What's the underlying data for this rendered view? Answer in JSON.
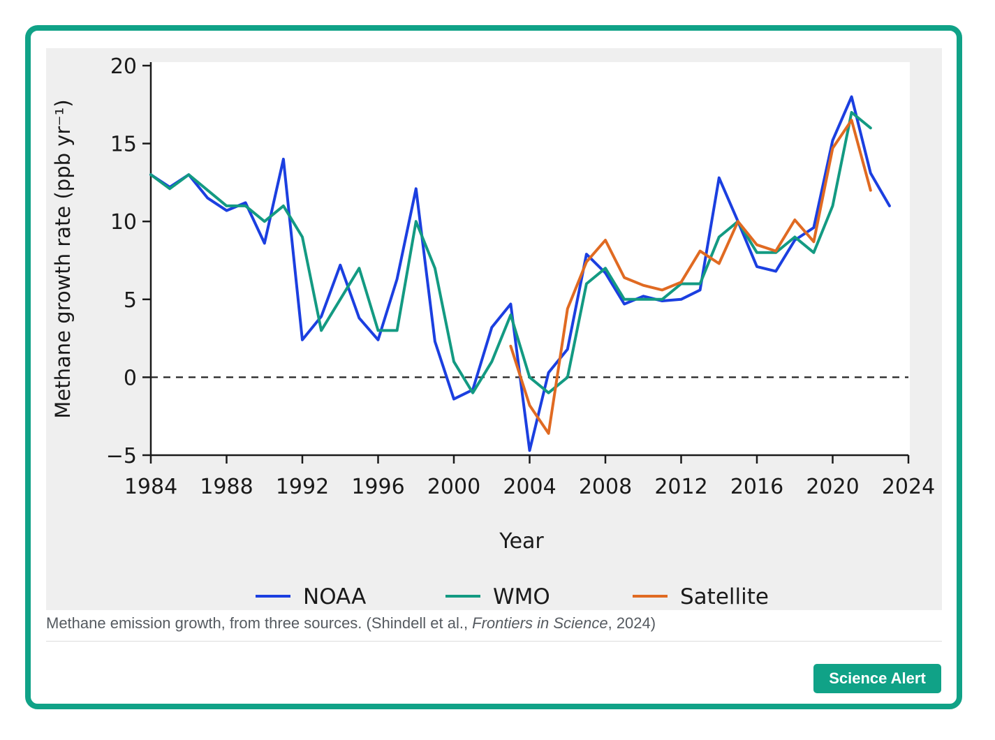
{
  "caption": {
    "prefix": "Methane emission growth, from three sources. (Shindell et al., ",
    "journal": "Frontiers in Science",
    "suffix": ", 2024)"
  },
  "badge": {
    "label": "Science Alert"
  },
  "colors": {
    "NOAA": "#1b3fe0",
    "WMO": "#139a82",
    "Satellite": "#e06a22",
    "border": "#10a287"
  },
  "chart_data": {
    "type": "line",
    "title": "",
    "xlabel": "Year",
    "ylabel": "Methane growth rate (ppb yr⁻¹)",
    "xlim": [
      1984,
      2024
    ],
    "ylim": [
      -5,
      20
    ],
    "xticks": [
      1984,
      1988,
      1992,
      1996,
      2000,
      2004,
      2008,
      2012,
      2016,
      2020,
      2024
    ],
    "yticks": [
      -5,
      0,
      5,
      10,
      15,
      20
    ],
    "yticklabels": [
      "−5",
      "0",
      "5",
      "10",
      "15",
      "20"
    ],
    "reference_line": {
      "y": 0,
      "style": "dashed"
    },
    "legend_position": "bottom",
    "series": [
      {
        "name": "NOAA",
        "x": [
          1984,
          1985,
          1986,
          1987,
          1988,
          1989,
          1990,
          1991,
          1992,
          1993,
          1994,
          1995,
          1996,
          1997,
          1998,
          1999,
          2000,
          2001,
          2002,
          2003,
          2004,
          2005,
          2006,
          2007,
          2008,
          2009,
          2010,
          2011,
          2012,
          2013,
          2014,
          2015,
          2016,
          2017,
          2018,
          2019,
          2020,
          2021,
          2022,
          2023
        ],
        "values": [
          13,
          12.2,
          13,
          11.5,
          10.7,
          11.2,
          8.6,
          14,
          2.4,
          3.9,
          7.2,
          3.8,
          2.4,
          6.3,
          12.1,
          2.3,
          -1.4,
          -0.8,
          3.2,
          4.7,
          -4.7,
          0.3,
          1.8,
          7.9,
          6.7,
          4.7,
          5.2,
          4.9,
          5.0,
          5.6,
          12.8,
          10,
          7.1,
          6.8,
          8.8,
          9.6,
          15.2,
          18,
          13.1,
          11
        ]
      },
      {
        "name": "WMO",
        "x": [
          1984,
          1985,
          1986,
          1987,
          1988,
          1989,
          1990,
          1991,
          1992,
          1993,
          1994,
          1995,
          1996,
          1997,
          1998,
          1999,
          2000,
          2001,
          2002,
          2003,
          2004,
          2005,
          2006,
          2007,
          2008,
          2009,
          2010,
          2011,
          2012,
          2013,
          2014,
          2015,
          2016,
          2017,
          2018,
          2019,
          2020,
          2021,
          2022
        ],
        "values": [
          13,
          12.1,
          13,
          12,
          11,
          11,
          10,
          11,
          9,
          3,
          5,
          7,
          3,
          3,
          10,
          7,
          1,
          -1,
          1,
          4,
          0,
          -1,
          0,
          6,
          7,
          5,
          5,
          5,
          6,
          6,
          9,
          10,
          8,
          8,
          9,
          8,
          11,
          17,
          16
        ]
      },
      {
        "name": "Satellite",
        "x": [
          2003,
          2004,
          2005,
          2006,
          2007,
          2008,
          2009,
          2010,
          2011,
          2012,
          2013,
          2014,
          2015,
          2016,
          2017,
          2018,
          2019,
          2020,
          2021,
          2022
        ],
        "values": [
          2,
          -1.8,
          -3.6,
          4.4,
          7.4,
          8.8,
          6.4,
          5.9,
          5.6,
          6.1,
          8.1,
          7.3,
          10,
          8.5,
          8.1,
          10.1,
          8.7,
          14.7,
          16.5,
          12
        ]
      }
    ]
  }
}
